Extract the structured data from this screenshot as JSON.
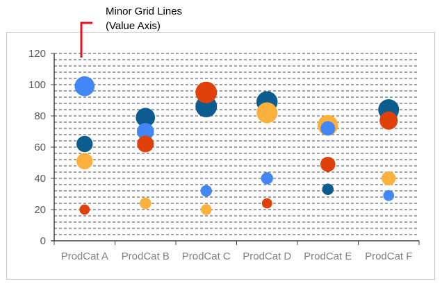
{
  "callout": {
    "line1": "Minor Grid Lines",
    "line2": "(Value Axis)",
    "color": "#e81123"
  },
  "chart_data": {
    "type": "bubble",
    "title": "",
    "xlabel": "",
    "ylabel": "",
    "categories": [
      "ProdCat A",
      "ProdCat B",
      "ProdCat C",
      "ProdCat D",
      "ProdCat E",
      "ProdCat F"
    ],
    "ylim": [
      0,
      120
    ],
    "y_ticks": [
      0,
      20,
      40,
      60,
      80,
      100,
      120
    ],
    "major_unit": 20,
    "minor_unit": 4,
    "minor_gridlines": true,
    "legend": "none",
    "series": [
      {
        "color": "#4287f5",
        "points": [
          {
            "category": "ProdCat A",
            "y": 99,
            "size": 3
          },
          {
            "category": "ProdCat B",
            "y": 70,
            "size": 2.2
          },
          {
            "category": "ProdCat C",
            "y": 32,
            "size": 1
          },
          {
            "category": "ProdCat D",
            "y": 40,
            "size": 1.1
          },
          {
            "category": "ProdCat E",
            "y": 72,
            "size": 1.6
          },
          {
            "category": "ProdCat F",
            "y": 29,
            "size": 0.9
          }
        ]
      },
      {
        "color": "#0b5d8f",
        "points": [
          {
            "category": "ProdCat A",
            "y": 62,
            "size": 2
          },
          {
            "category": "ProdCat B",
            "y": 79,
            "size": 2.8
          },
          {
            "category": "ProdCat C",
            "y": 86,
            "size": 3.5
          },
          {
            "category": "ProdCat D",
            "y": 89,
            "size": 3.4
          },
          {
            "category": "ProdCat E",
            "y": 33,
            "size": 1
          },
          {
            "category": "ProdCat F",
            "y": 84,
            "size": 3.3
          }
        ]
      },
      {
        "color": "#e0400a",
        "points": [
          {
            "category": "ProdCat A",
            "y": 20,
            "size": 0.8
          },
          {
            "category": "ProdCat B",
            "y": 62,
            "size": 2.1
          },
          {
            "category": "ProdCat C",
            "y": 95,
            "size": 3.5
          },
          {
            "category": "ProdCat D",
            "y": 24,
            "size": 0.8
          },
          {
            "category": "ProdCat E",
            "y": 49,
            "size": 1.7
          },
          {
            "category": "ProdCat F",
            "y": 77,
            "size": 2.5
          }
        ]
      },
      {
        "color": "#fbb13c",
        "points": [
          {
            "category": "ProdCat A",
            "y": 51,
            "size": 2
          },
          {
            "category": "ProdCat B",
            "y": 24,
            "size": 1
          },
          {
            "category": "ProdCat C",
            "y": 20,
            "size": 0.9
          },
          {
            "category": "ProdCat D",
            "y": 82,
            "size": 3.3
          },
          {
            "category": "ProdCat E",
            "y": 74,
            "size": 3.2
          },
          {
            "category": "ProdCat F",
            "y": 40,
            "size": 1.5
          }
        ]
      }
    ]
  }
}
